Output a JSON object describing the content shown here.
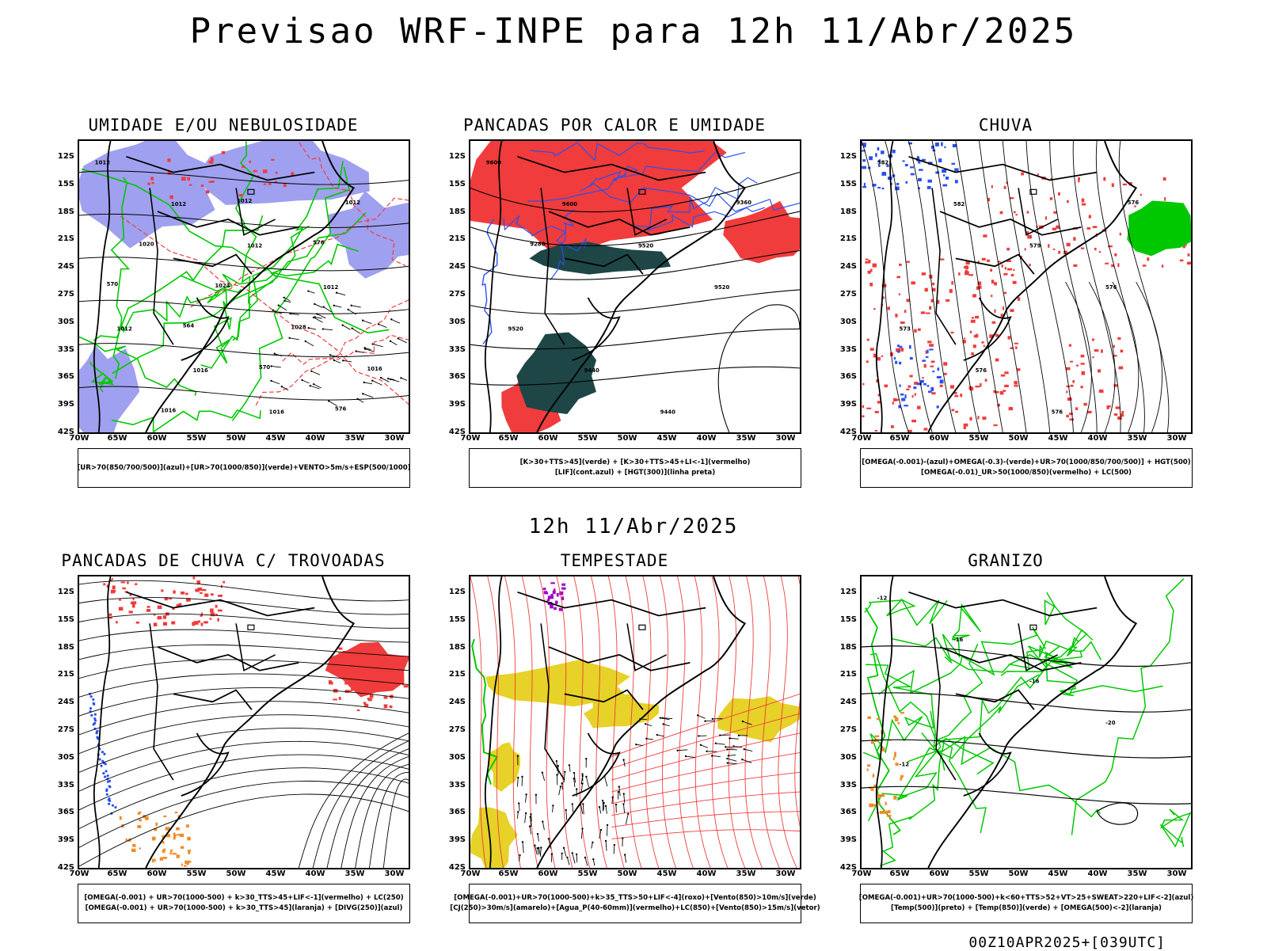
{
  "title": "Previsao WRF-INPE  para 12h 11/Abr/2025",
  "mid_title": "12h 11/Abr/2025",
  "footer": "00Z10APR2025+[039UTC]",
  "lat_labels": [
    "12S",
    "15S",
    "18S",
    "21S",
    "24S",
    "27S",
    "30S",
    "33S",
    "36S",
    "39S",
    "42S"
  ],
  "lon_labels": [
    "70W",
    "65W",
    "60W",
    "55W",
    "50W",
    "45W",
    "40W",
    "35W",
    "30W"
  ],
  "colors": {
    "humid_blue": "#a0a0f0",
    "green": "#00c800",
    "red": "#f03c3c",
    "dark_teal": "#1e4646",
    "blue": "#2850f0",
    "yellow": "#e6d228",
    "orange": "#f08c28",
    "purple": "#a000c8"
  },
  "panels": [
    {
      "title": "UMIDADE E/OU NEBULOSIDADE",
      "legend": [
        "[UR>70(850/700/500)](azul)+[UR>70(1000/850)](verde)+VENTO>5m/s+ESP(500/1000)"
      ],
      "contour_labels": [
        "1012",
        "1012",
        "1012",
        "1012",
        "1012",
        "1016",
        "1016",
        "1012",
        "1020",
        "1024",
        "1028",
        "1016",
        "1016",
        "1012",
        "576",
        "570",
        "564",
        "570",
        "576"
      ]
    },
    {
      "title": "PANCADAS POR CALOR E UMIDADE",
      "legend": [
        "[K>30+TTS>45](verde) + [K>30+TTS>45+LI<-1](vermelho)",
        "[LIF](cont.azul) + [HGT(300)](linha preta)"
      ],
      "contour_labels": [
        "9600",
        "9600",
        "9520",
        "9520",
        "9520",
        "9440",
        "9440",
        "9360",
        "9280"
      ]
    },
    {
      "title": "CHUVA",
      "legend": [
        "[OMEGA(-0.001)-(azul)+OMEGA(-0.3)-(verde)+UR>70(1000/850/700/500)] + HGT(500)",
        "[OMEGA(-0.01)_UR>50(1000/850)(vermelho) + LC(500)"
      ],
      "contour_labels": [
        "582",
        "582",
        "579",
        "576",
        "573",
        "576",
        "576",
        "576"
      ]
    },
    {
      "title": "PANCADAS DE CHUVA C/ TROVOADAS",
      "legend": [
        "[OMEGA(-0.001) + UR>70(1000-500) + k>30_TTS>45+LIF<-1](vermelho) + LC(250)",
        "[OMEGA(-0.001) + UR>70(1000-500) + k>30_TTS>45](laranja) + [DIVG(250)](azul)"
      ],
      "contour_labels": []
    },
    {
      "title": "TEMPESTADE",
      "legend": [
        "[OMEGA(-0.001)+UR>70(1000-500)+k>35_TTS>50+LIF<-4](roxo)+[Vento(850)>10m/s](verde)",
        "[CJ(250)>30m/s](amarelo)+[Agua_P(40-60mm)](vermelho)+LC(850)+[Vento(850)>15m/s](vetor)"
      ],
      "contour_labels": []
    },
    {
      "title": "GRANIZO",
      "legend": [
        "[OMEGA(-0.001)+UR>70(1000-500)+k<60+TTS>52+VT>25+SWEAT>220+LIF<-2](azul)",
        "[Temp(500)](preto) + [Temp(850)](verde) + [OMEGA(500)<-2](laranja)"
      ],
      "contour_labels": [
        "-12",
        "-16",
        "-16",
        "-20",
        "-12"
      ]
    }
  ]
}
